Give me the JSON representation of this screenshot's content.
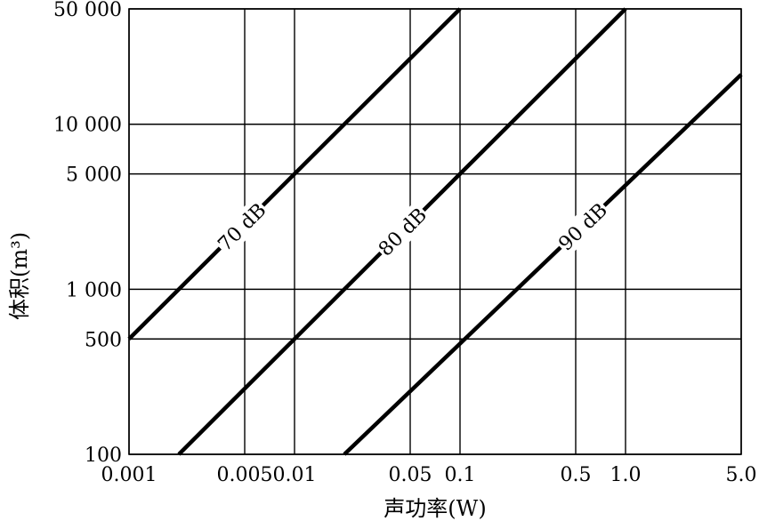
{
  "chart_data": {
    "type": "line",
    "title": "",
    "xlabel": "声功率(W)",
    "ylabel": "体积(m³)",
    "x_scale": "log",
    "y_scale": "log",
    "xlim": [
      0.001,
      5.0
    ],
    "ylim": [
      100,
      50000
    ],
    "grid": true,
    "x_ticks": [
      0.001,
      0.005,
      0.01,
      0.05,
      0.1,
      0.5,
      1.0,
      5.0
    ],
    "x_tick_labels": [
      "0.001",
      "0.005",
      "0.01",
      "0.05",
      "0.1",
      "0.5",
      "1.0",
      "5.0"
    ],
    "y_ticks": [
      100,
      500,
      1000,
      5000,
      10000,
      50000
    ],
    "y_tick_labels": [
      "100",
      "500",
      "1 000",
      "5 000",
      "10 000",
      "50 000"
    ],
    "series": [
      {
        "name": "70 dB",
        "x": [
          0.001,
          0.1
        ],
        "y": [
          500,
          50000
        ]
      },
      {
        "name": "80 dB",
        "x": [
          0.002,
          1.0
        ],
        "y": [
          100,
          50000
        ]
      },
      {
        "name": "90 dB",
        "x": [
          0.02,
          5.0
        ],
        "y": [
          100,
          20000
        ]
      }
    ]
  }
}
